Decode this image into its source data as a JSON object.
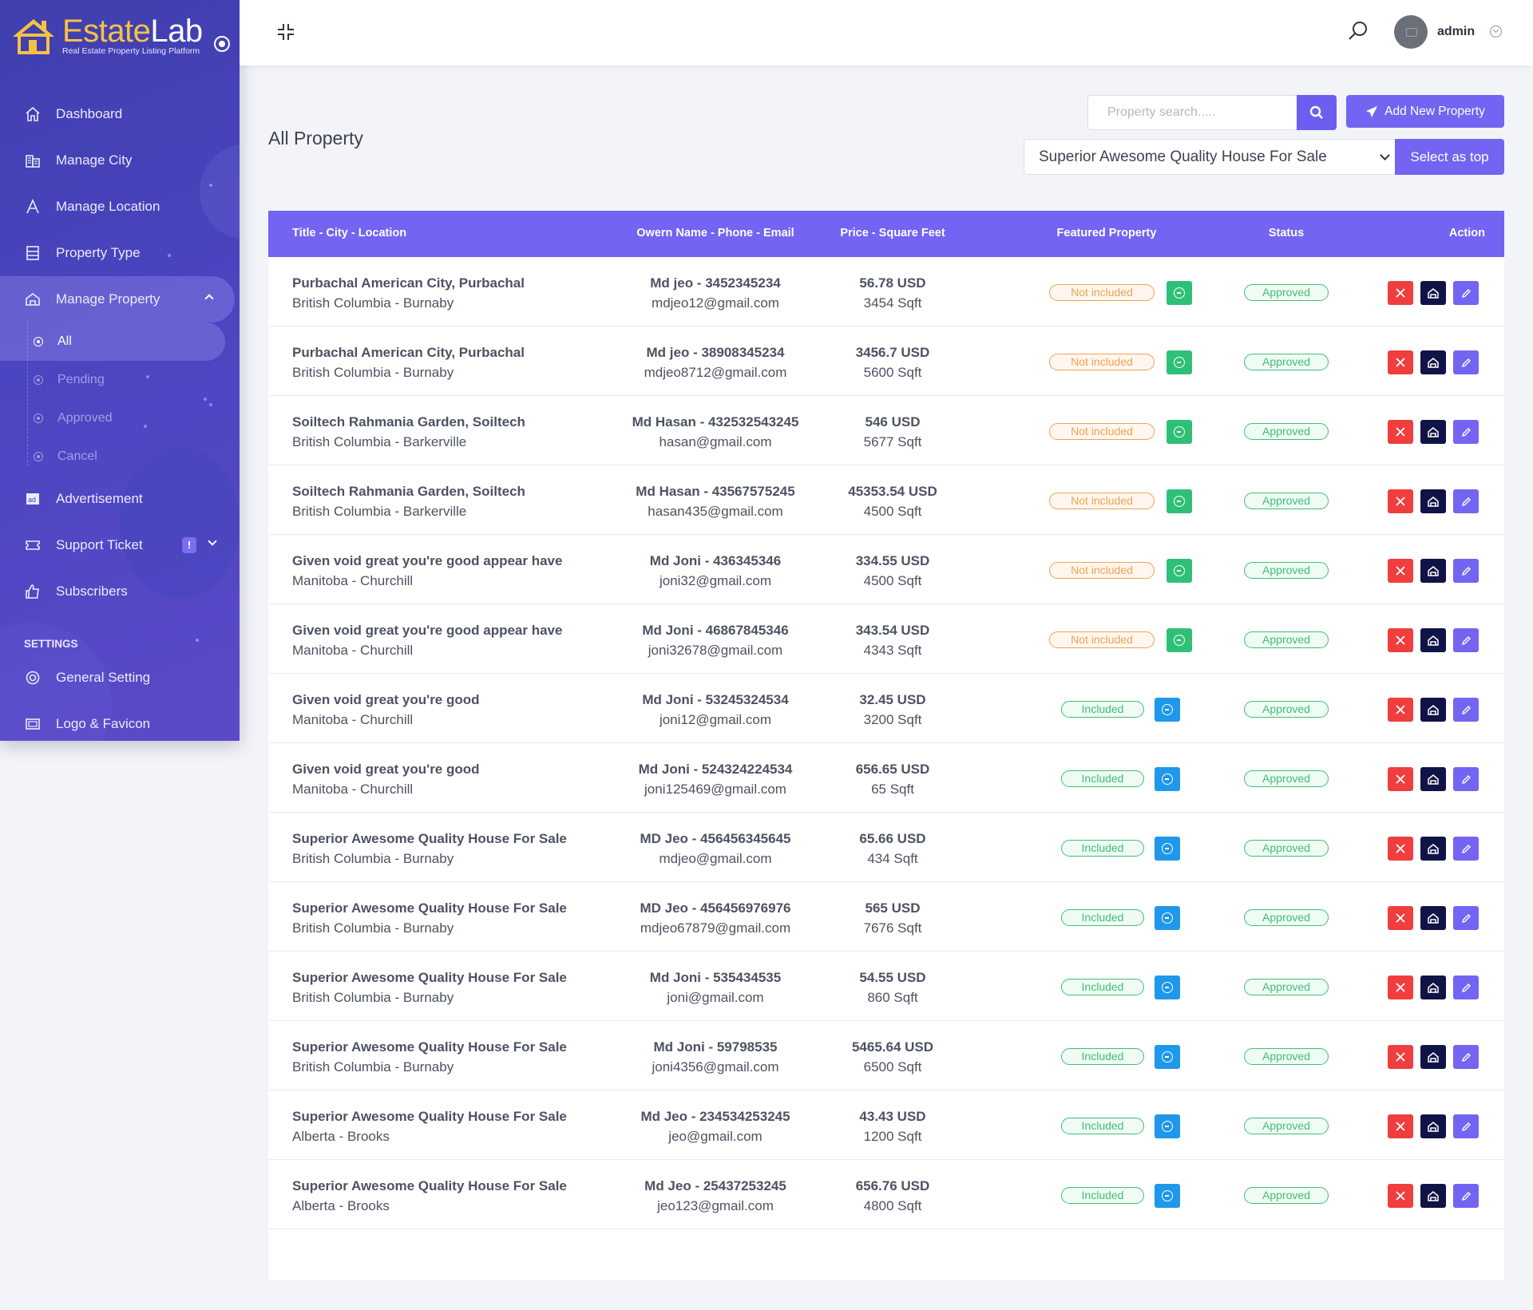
{
  "brand": {
    "name_part1": "Estate",
    "name_part2": "Lab",
    "tagline": "Real Estate Property Listing Platform"
  },
  "sidebar": {
    "items": [
      {
        "label": "Dashboard",
        "icon": "home-icon"
      },
      {
        "label": "Manage City",
        "icon": "city-icon"
      },
      {
        "label": "Manage Location",
        "icon": "location-icon"
      },
      {
        "label": "Property Type",
        "icon": "list-icon"
      },
      {
        "label": "Manage Property",
        "icon": "property-icon"
      }
    ],
    "sub_items": [
      {
        "label": "All"
      },
      {
        "label": "Pending"
      },
      {
        "label": "Approved"
      },
      {
        "label": "Cancel"
      }
    ],
    "items2": [
      {
        "label": "Advertisement",
        "icon": "ad-icon"
      },
      {
        "label": "Support Ticket",
        "icon": "ticket-icon",
        "badge": "!"
      },
      {
        "label": "Subscribers",
        "icon": "thumbs-up-icon"
      }
    ],
    "settings_heading": "SETTINGS",
    "settings_items": [
      {
        "label": "General Setting",
        "icon": "settings-icon"
      },
      {
        "label": "Logo & Favicon",
        "icon": "logo-icon"
      }
    ]
  },
  "topbar": {
    "user_name": "admin"
  },
  "page": {
    "title": "All Property",
    "search_placeholder": "Property search.....",
    "add_button": "Add New Property",
    "select_value": "Superior Awesome Quality House For Sale",
    "select_top_button": "Select as top"
  },
  "table": {
    "headers": [
      "Title - City - Location",
      "Owern Name - Phone - Email",
      "Price - Square Feet",
      "Featured Property",
      "Status",
      "Action"
    ],
    "rows": [
      {
        "title": "Purbachal American City, Purbachal",
        "location": "British Columbia - Burnaby",
        "owner": "Md jeo - 3452345234",
        "email": "mdjeo12@gmail.com",
        "price": "56.78 USD",
        "sqft": "3454 Sqft",
        "featured": "Not included",
        "status": "Approved"
      },
      {
        "title": "Purbachal American City, Purbachal",
        "location": "British Columbia - Burnaby",
        "owner": "Md jeo - 38908345234",
        "email": "mdjeo8712@gmail.com",
        "price": "3456.7 USD",
        "sqft": "5600 Sqft",
        "featured": "Not included",
        "status": "Approved"
      },
      {
        "title": "Soiltech Rahmania Garden, Soiltech",
        "location": "British Columbia - Barkerville",
        "owner": "Md Hasan - 432532543245",
        "email": "hasan@gmail.com",
        "price": "546 USD",
        "sqft": "5677 Sqft",
        "featured": "Not included",
        "status": "Approved"
      },
      {
        "title": "Soiltech Rahmania Garden, Soiltech",
        "location": "British Columbia - Barkerville",
        "owner": "Md Hasan - 43567575245",
        "email": "hasan435@gmail.com",
        "price": "45353.54 USD",
        "sqft": "4500 Sqft",
        "featured": "Not included",
        "status": "Approved"
      },
      {
        "title": "Given void great you're good appear have",
        "location": "Manitoba - Churchill",
        "owner": "Md Joni - 436345346",
        "email": "joni32@gmail.com",
        "price": "334.55 USD",
        "sqft": "4500 Sqft",
        "featured": "Not included",
        "status": "Approved"
      },
      {
        "title": "Given void great you're good appear have",
        "location": "Manitoba - Churchill",
        "owner": "Md Joni - 46867845346",
        "email": "joni32678@gmail.com",
        "price": "343.54 USD",
        "sqft": "4343 Sqft",
        "featured": "Not included",
        "status": "Approved"
      },
      {
        "title": "Given void great you're good",
        "location": "Manitoba - Churchill",
        "owner": "Md Joni - 53245324534",
        "email": "joni12@gmail.com",
        "price": "32.45 USD",
        "sqft": "3200 Sqft",
        "featured": "Included",
        "status": "Approved"
      },
      {
        "title": "Given void great you're good",
        "location": "Manitoba - Churchill",
        "owner": "Md Joni - 524324224534",
        "email": "joni125469@gmail.com",
        "price": "656.65 USD",
        "sqft": "65 Sqft",
        "featured": "Included",
        "status": "Approved"
      },
      {
        "title": "Superior Awesome Quality House For Sale",
        "location": "British Columbia - Burnaby",
        "owner": "MD Jeo - 456456345645",
        "email": "mdjeo@gmail.com",
        "price": "65.66 USD",
        "sqft": "434 Sqft",
        "featured": "Included",
        "status": "Approved"
      },
      {
        "title": "Superior Awesome Quality House For Sale",
        "location": "British Columbia - Burnaby",
        "owner": "MD Jeo - 456456976976",
        "email": "mdjeo67879@gmail.com",
        "price": "565 USD",
        "sqft": "7676 Sqft",
        "featured": "Included",
        "status": "Approved"
      },
      {
        "title": "Superior Awesome Quality House For Sale",
        "location": "British Columbia - Burnaby",
        "owner": "Md Joni - 535434535",
        "email": "joni@gmail.com",
        "price": "54.55 USD",
        "sqft": "860 Sqft",
        "featured": "Included",
        "status": "Approved"
      },
      {
        "title": "Superior Awesome Quality House For Sale",
        "location": "British Columbia - Burnaby",
        "owner": "Md Joni - 59798535",
        "email": "joni4356@gmail.com",
        "price": "5465.64 USD",
        "sqft": "6500 Sqft",
        "featured": "Included",
        "status": "Approved"
      },
      {
        "title": "Superior Awesome Quality House For Sale",
        "location": "Alberta - Brooks",
        "owner": "Md Jeo - 234534253245",
        "email": "jeo@gmail.com",
        "price": "43.43 USD",
        "sqft": "1200 Sqft",
        "featured": "Included",
        "status": "Approved"
      },
      {
        "title": "Superior Awesome Quality House For Sale",
        "location": "Alberta - Brooks",
        "owner": "Md Jeo - 25437253245",
        "email": "jeo123@gmail.com",
        "price": "656.76 USD",
        "sqft": "4800 Sqft",
        "featured": "Included",
        "status": "Approved"
      }
    ]
  },
  "colors": {
    "accent": "#7364f1",
    "danger": "#f03e3e",
    "dark": "#101345",
    "success": "#2fc078",
    "info": "#1e98ea",
    "warning": "#f4a052"
  }
}
